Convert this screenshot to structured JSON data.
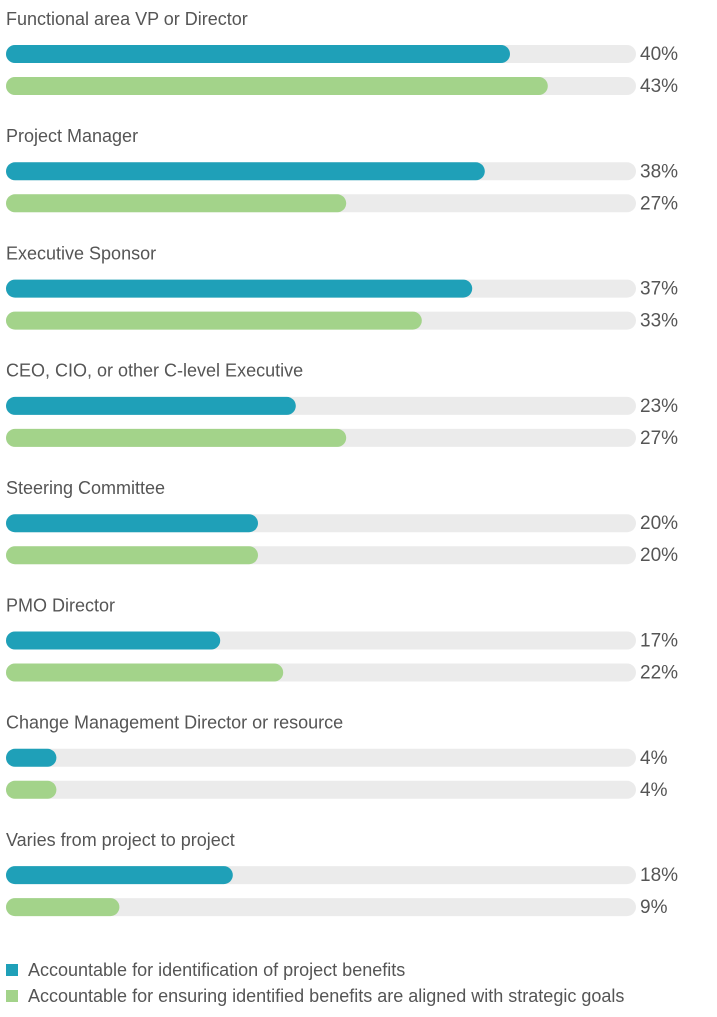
{
  "chart_data": {
    "type": "hbar",
    "categories": [
      "Functional area VP or Director",
      "Project Manager",
      "Executive Sponsor",
      "CEO, CIO, or other C-level Executive",
      "Steering Committee",
      "PMO Director",
      "Change Management Director or resource",
      "Varies from project to project"
    ],
    "series": [
      {
        "name": "Accountable for identification of project benefits",
        "color": "#1fa0b8",
        "values": [
          40,
          38,
          37,
          23,
          20,
          17,
          4,
          18
        ],
        "value_labels": [
          "40%",
          "38%",
          "37%",
          "23%",
          "20%",
          "17%",
          "4%",
          "18%"
        ]
      },
      {
        "name": "Accountable for ensuring identified benefits are aligned with strategic goals",
        "color": "#a3d38a",
        "values": [
          43,
          27,
          33,
          27,
          20,
          22,
          4,
          9
        ],
        "value_labels": [
          "43%",
          "27%",
          "33%",
          "27%",
          "20%",
          "22%",
          "4%",
          "9%"
        ]
      }
    ],
    "xlim": [
      0,
      50
    ],
    "track_color": "#ebebeb"
  }
}
